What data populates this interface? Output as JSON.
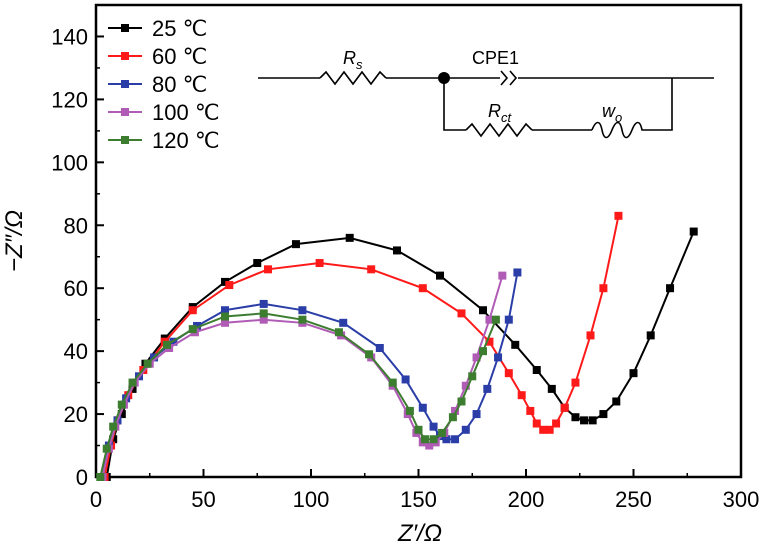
{
  "chart_data": {
    "type": "line",
    "title": "",
    "xlabel": "Z′/Ω",
    "ylabel": "−Z″/Ω",
    "xlim": [
      0,
      300
    ],
    "ylim": [
      0,
      150
    ],
    "xticks": [
      0,
      50,
      100,
      150,
      200,
      250,
      300
    ],
    "yticks": [
      0,
      20,
      40,
      60,
      80,
      100,
      120,
      140
    ],
    "legend_position": "top-left",
    "series": [
      {
        "name": "25 ℃",
        "color": "#000000",
        "x": [
          5,
          8,
          12,
          17,
          23,
          32,
          45,
          60,
          75,
          93,
          118,
          140,
          160,
          180,
          195,
          205,
          212,
          218,
          223,
          227,
          231,
          236,
          242,
          250,
          258,
          267,
          278
        ],
        "y": [
          0,
          12,
          20,
          28,
          36,
          44,
          54,
          62,
          68,
          74,
          76,
          72,
          64,
          53,
          42,
          34,
          28,
          22,
          19,
          18,
          18,
          20,
          24,
          33,
          45,
          60,
          78
        ]
      },
      {
        "name": "60 ℃",
        "color": "#ff1a1a",
        "x": [
          4,
          7,
          10,
          15,
          22,
          32,
          45,
          62,
          80,
          104,
          128,
          152,
          170,
          183,
          192,
          198,
          202,
          205,
          208,
          211,
          214,
          218,
          223,
          230,
          236,
          243
        ],
        "y": [
          0,
          10,
          18,
          26,
          34,
          43,
          53,
          61,
          66,
          68,
          66,
          60,
          52,
          43,
          33,
          26,
          21,
          17,
          15,
          15,
          17,
          22,
          30,
          45,
          60,
          83
        ]
      },
      {
        "name": "80 ℃",
        "color": "#2b3ea8",
        "x": [
          3,
          6,
          10,
          14,
          20,
          27,
          36,
          47,
          60,
          78,
          96,
          115,
          132,
          144,
          152,
          157,
          160,
          163,
          167,
          172,
          177,
          182,
          187,
          192,
          196
        ],
        "y": [
          0,
          10,
          18,
          25,
          32,
          38,
          43,
          48,
          53,
          55,
          53,
          49,
          41,
          31,
          22,
          16,
          13,
          12,
          12,
          15,
          20,
          28,
          38,
          50,
          65
        ]
      },
      {
        "name": "100 ℃",
        "color": "#b05cb6",
        "x": [
          3,
          6,
          9,
          13,
          18,
          25,
          34,
          46,
          60,
          78,
          96,
          114,
          128,
          138,
          145,
          149,
          152,
          155,
          158,
          162,
          167,
          172,
          177,
          183,
          189
        ],
        "y": [
          0,
          9,
          16,
          23,
          30,
          36,
          41,
          46,
          49,
          50,
          49,
          45,
          38,
          29,
          20,
          14,
          11,
          10,
          11,
          14,
          21,
          29,
          38,
          50,
          64
        ]
      },
      {
        "name": "120 ℃",
        "color": "#3d7d30",
        "x": [
          2,
          5,
          8,
          12,
          17,
          24,
          33,
          45,
          60,
          78,
          96,
          113,
          127,
          138,
          146,
          150,
          153,
          157,
          161,
          166,
          170,
          175,
          180,
          186
        ],
        "y": [
          0,
          9,
          16,
          23,
          30,
          36,
          42,
          47,
          51,
          52,
          50,
          46,
          39,
          30,
          21,
          15,
          12,
          12,
          14,
          19,
          24,
          32,
          40,
          50
        ]
      }
    ],
    "inset_circuit": {
      "labels": [
        "R",
        "s",
        "CPE1",
        "R",
        "ct",
        "w",
        "o"
      ]
    }
  }
}
